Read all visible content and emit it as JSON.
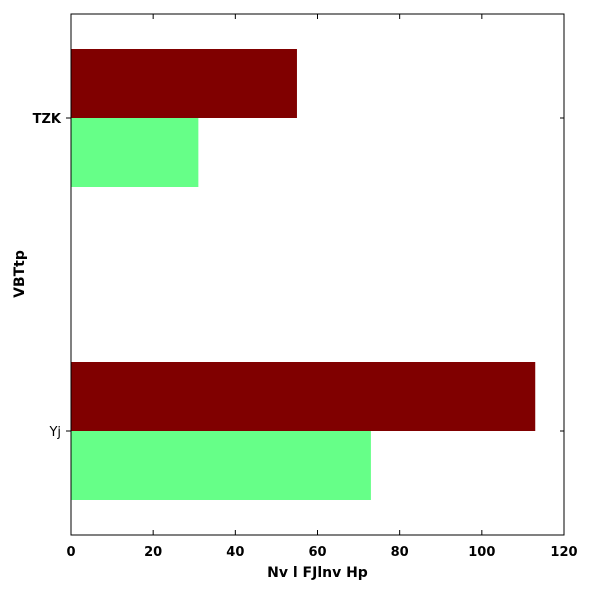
{
  "chart_data": {
    "type": "bar",
    "orientation": "horizontal",
    "categories": [
      "TZK",
      "Yj"
    ],
    "series": [
      {
        "color": "#800000",
        "values": [
          55,
          113
        ]
      },
      {
        "color": "#66ff88",
        "values": [
          31,
          73
        ]
      }
    ],
    "title": "",
    "xlabel": "Nv  l FJlnv Hp",
    "ylabel": "VBTtp",
    "xlim": [
      0,
      120
    ],
    "xticks": [
      0,
      20,
      40,
      60,
      80,
      100,
      120
    ],
    "grid": false,
    "legend": "none"
  }
}
